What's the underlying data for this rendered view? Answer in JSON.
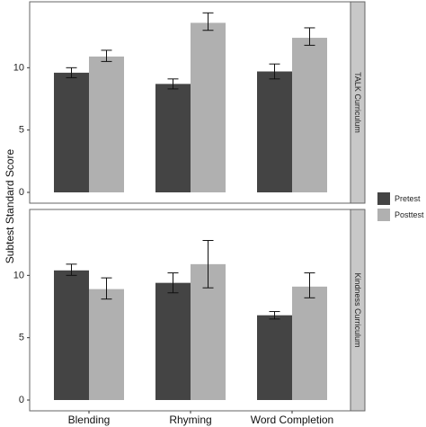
{
  "chart_data": {
    "type": "bar",
    "ylabel": "Subtest Standard Score",
    "categories": [
      "Blending",
      "Rhyming",
      "Word Completion"
    ],
    "series_names": [
      "Pretest",
      "Posttest"
    ],
    "ylim": [
      0,
      15
    ],
    "yticks": [
      0,
      5,
      10
    ],
    "grid": false,
    "legend_position": "right",
    "colors": {
      "Pretest": "#444444",
      "Posttest": "#b0b0b0"
    },
    "panels": [
      {
        "strip": "TALK Curriculum",
        "series": [
          {
            "name": "Pretest",
            "values": [
              9.6,
              8.7,
              9.7
            ],
            "err_low": [
              9.2,
              8.3,
              9.1
            ],
            "err_high": [
              10.0,
              9.1,
              10.3
            ]
          },
          {
            "name": "Posttest",
            "values": [
              10.9,
              13.6,
              12.4
            ],
            "err_low": [
              10.5,
              13.0,
              11.8
            ],
            "err_high": [
              11.4,
              14.4,
              13.2
            ]
          }
        ]
      },
      {
        "strip": "Kindness Curriculum",
        "series": [
          {
            "name": "Pretest",
            "values": [
              10.4,
              9.4,
              6.8
            ],
            "err_low": [
              10.0,
              8.6,
              6.5
            ],
            "err_high": [
              10.9,
              10.2,
              7.1
            ]
          },
          {
            "name": "Posttest",
            "values": [
              8.9,
              10.9,
              9.1
            ],
            "err_low": [
              8.1,
              9.0,
              8.2
            ],
            "err_high": [
              9.8,
              12.8,
              10.2
            ]
          }
        ]
      }
    ]
  }
}
